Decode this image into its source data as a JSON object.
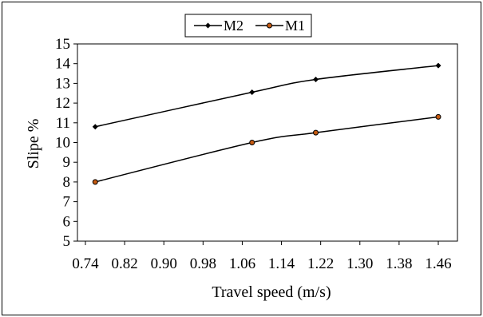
{
  "chart_data": {
    "type": "line",
    "xlabel": "Travel speed (m/s)",
    "ylabel": "Slipe  %",
    "xlim": [
      0.74,
      1.46
    ],
    "ylim": [
      5,
      15
    ],
    "x_ticks": [
      "0.74",
      "0.82",
      "0.90",
      "0.98",
      "1.06",
      "1.14",
      "1.22",
      "1.30",
      "1.38",
      "1.46"
    ],
    "y_ticks": [
      "5",
      "6",
      "7",
      "8",
      "9",
      "10",
      "11",
      "12",
      "13",
      "14",
      "15"
    ],
    "legend_position": "top-center",
    "grid": false,
    "series": [
      {
        "name": "M2",
        "marker": "diamond",
        "color": "#000000",
        "marker_fill": "#000000",
        "points": [
          [
            0.76,
            10.8
          ],
          [
            1.08,
            12.55
          ],
          [
            1.21,
            13.2
          ],
          [
            1.46,
            13.9
          ]
        ]
      },
      {
        "name": "M1",
        "marker": "circle",
        "color": "#000000",
        "marker_fill": "#c55a11",
        "points": [
          [
            0.76,
            8.0
          ],
          [
            1.08,
            10.0
          ],
          [
            1.21,
            10.5
          ],
          [
            1.46,
            11.3
          ]
        ]
      }
    ]
  }
}
